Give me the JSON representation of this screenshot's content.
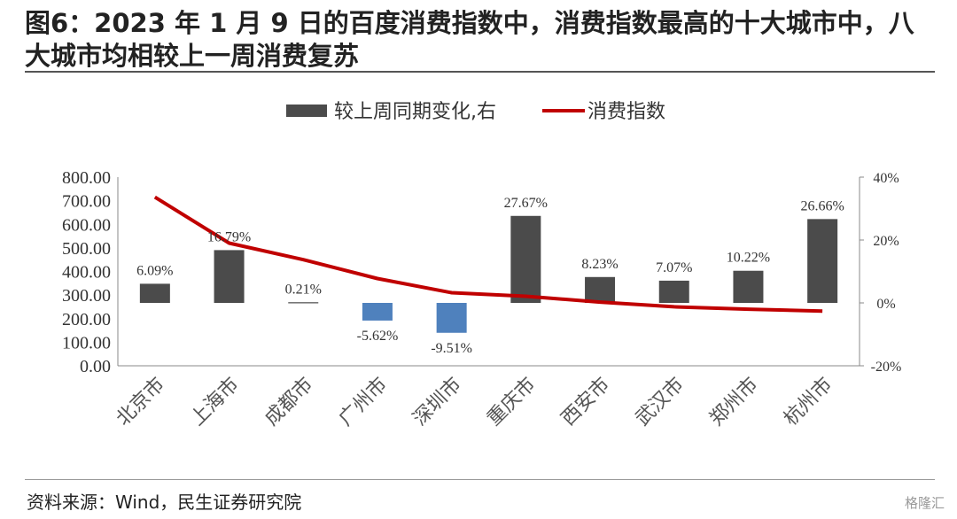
{
  "figure": {
    "title": "图6：2023 年 1 月 9 日的百度消费指数中，消费指数最高的十大城市中，八大城市均相较上一周消费复苏",
    "source": "资料来源：Wind，民生证券研究院",
    "watermark": "格隆汇"
  },
  "chart_data": {
    "type": "bar",
    "categories": [
      "北京市",
      "上海市",
      "成都市",
      "广州市",
      "深圳市",
      "重庆市",
      "西安市",
      "武汉市",
      "郑州市",
      "杭州市"
    ],
    "series": [
      {
        "name": "较上周同期变化,右",
        "type": "bar",
        "axis": "right",
        "unit": "%",
        "values": [
          6.09,
          16.79,
          0.21,
          -5.62,
          -9.51,
          27.67,
          8.23,
          7.07,
          10.22,
          26.66
        ],
        "labels": [
          "6.09%",
          "16.79%",
          "0.21%",
          "-5.62%",
          "-9.51%",
          "27.67%",
          "8.23%",
          "7.07%",
          "10.22%",
          "26.66%"
        ]
      },
      {
        "name": "消费指数",
        "type": "line",
        "axis": "left",
        "values": [
          715,
          520,
          450,
          370,
          310,
          295,
          270,
          250,
          240,
          232
        ]
      }
    ],
    "left_axis": {
      "ylim": [
        0,
        800
      ],
      "ticks": [
        "800.00",
        "700.00",
        "600.00",
        "500.00",
        "400.00",
        "300.00",
        "200.00",
        "100.00",
        "0.00"
      ]
    },
    "right_axis": {
      "ylim": [
        -20,
        40
      ],
      "ticks": [
        "40%",
        "20%",
        "0%",
        "-20%"
      ]
    },
    "legend_position": "top-center",
    "grid": false,
    "colors": {
      "bar_positive": "#4b4b4b",
      "bar_negative": "#4f81bd",
      "line": "#c00000"
    }
  }
}
